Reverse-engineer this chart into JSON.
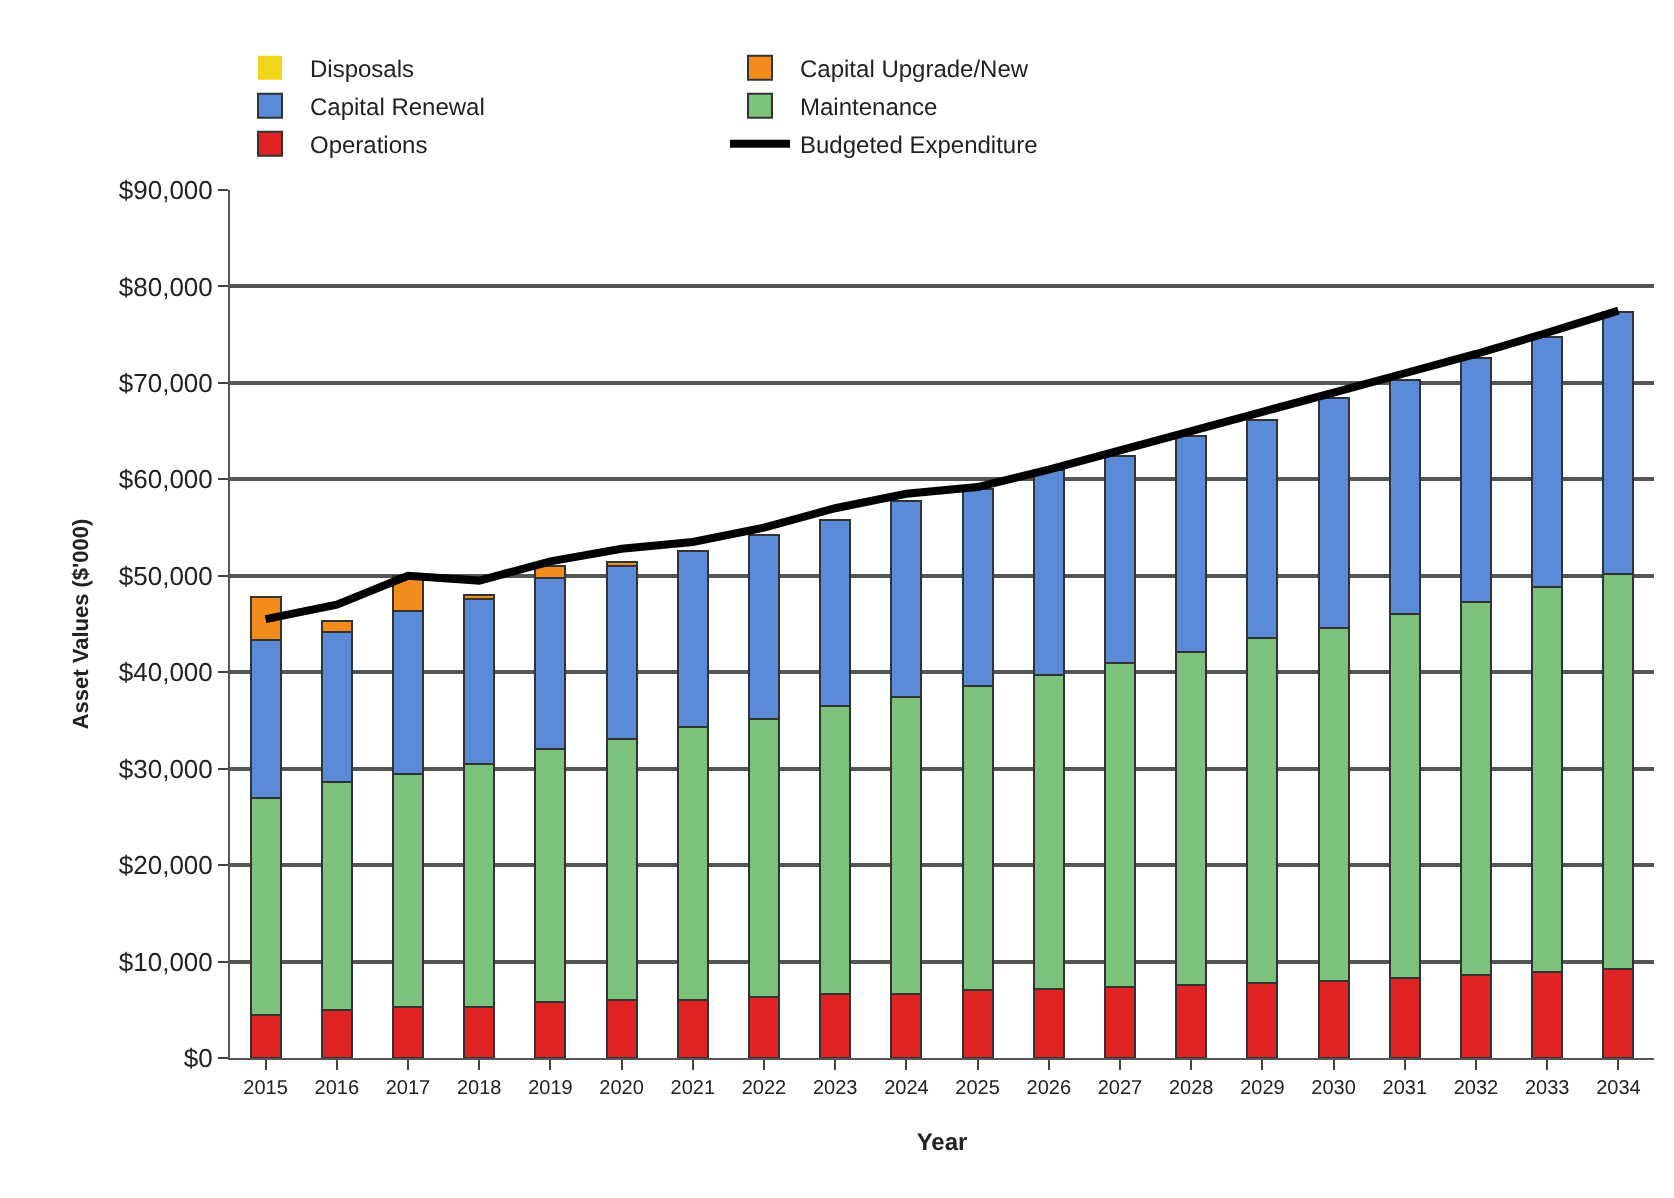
{
  "chart_data": {
    "type": "bar",
    "stacked": true,
    "xlabel": "Year",
    "ylabel": "Asset Values ($'000)",
    "categories": [
      "2015",
      "2016",
      "2017",
      "2018",
      "2019",
      "2020",
      "2021",
      "2022",
      "2023",
      "2024",
      "2025",
      "2026",
      "2027",
      "2028",
      "2029",
      "2030",
      "2031",
      "2032",
      "2033",
      "2034"
    ],
    "series": [
      {
        "name": "Operations",
        "color": "#e02424",
        "values": [
          4500,
          5000,
          5300,
          5300,
          5800,
          6000,
          6000,
          6300,
          6600,
          6600,
          7000,
          7200,
          7400,
          7600,
          7800,
          8000,
          8300,
          8600,
          8900,
          9200
        ]
      },
      {
        "name": "Maintenance",
        "color": "#7dc27a",
        "values": [
          22500,
          23600,
          24100,
          25200,
          26200,
          27100,
          28300,
          28900,
          29900,
          30800,
          31600,
          32500,
          33600,
          34500,
          35700,
          36600,
          37700,
          38700,
          39900,
          41000
        ]
      },
      {
        "name": "Capital Renewal",
        "color": "#5b8bd6",
        "values": [
          16300,
          15600,
          17000,
          17100,
          17800,
          17900,
          18300,
          19000,
          19300,
          20400,
          20400,
          21300,
          21400,
          22400,
          22700,
          23800,
          24300,
          25300,
          26000,
          27100
        ]
      },
      {
        "name": "Capital Upgrade/New",
        "color": "#f28c1c",
        "values": [
          4500,
          1100,
          3600,
          400,
          1200,
          400,
          0,
          0,
          0,
          0,
          0,
          0,
          0,
          0,
          0,
          0,
          0,
          0,
          0,
          0
        ]
      },
      {
        "name": "Disposals",
        "color": "#f2d61c",
        "values": [
          0,
          0,
          0,
          0,
          0,
          0,
          0,
          0,
          0,
          0,
          0,
          0,
          0,
          0,
          0,
          0,
          0,
          0,
          0,
          0
        ]
      },
      {
        "name": "Budgeted Expenditure",
        "type": "line",
        "color": "#000000",
        "marker": "none",
        "values": [
          45500,
          47000,
          50000,
          49500,
          51500,
          52800,
          53500,
          55000,
          57000,
          58500,
          59200,
          61000,
          63000,
          65000,
          67000,
          69000,
          71000,
          73000,
          75200,
          77500
        ]
      }
    ],
    "ylim": [
      0,
      90000
    ],
    "yticks": [
      {
        "value": 0,
        "label": "$0"
      },
      {
        "value": 10000,
        "label": "$10,000"
      },
      {
        "value": 20000,
        "label": "$20,000"
      },
      {
        "value": 30000,
        "label": "$30,000"
      },
      {
        "value": 40000,
        "label": "$40,000"
      },
      {
        "value": 50000,
        "label": "$50,000"
      },
      {
        "value": 60000,
        "label": "$60,000"
      },
      {
        "value": 70000,
        "label": "$70,000"
      },
      {
        "value": 80000,
        "label": "$80,000"
      },
      {
        "value": 90000,
        "label": "$90,000"
      }
    ],
    "grid": "y",
    "legend": "top"
  }
}
